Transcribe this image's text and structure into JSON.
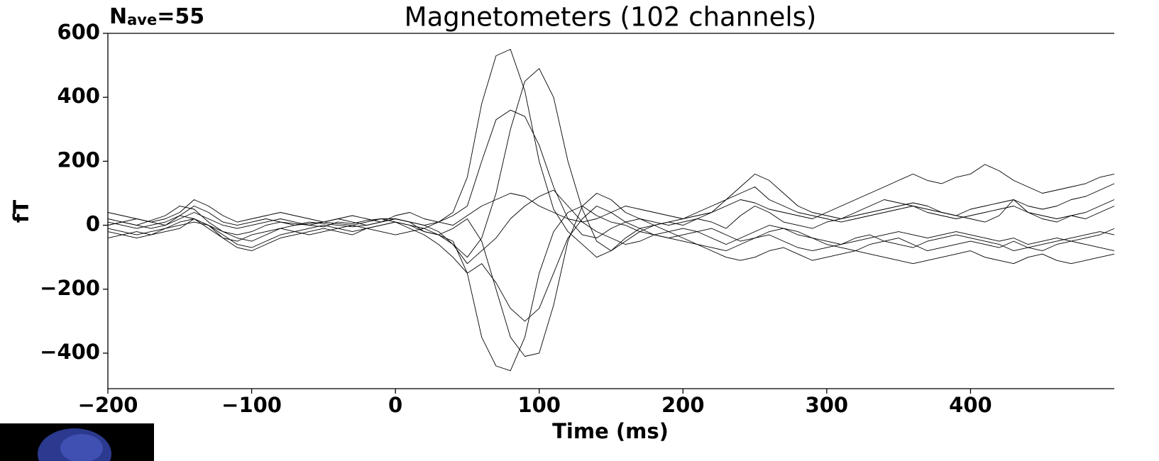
{
  "chart_data": {
    "type": "line",
    "title": "Magnetometers (102 channels)",
    "annotation": {
      "main": "N",
      "subscript": "ave",
      "rest": "=55"
    },
    "x_label": "Time (ms)",
    "y_label": "fT",
    "xlim": [
      -200,
      500
    ],
    "ylim": [
      -511,
      600
    ],
    "xticks": [
      {
        "value": -200,
        "label": "−200"
      },
      {
        "value": -100,
        "label": "−100"
      },
      0,
      100,
      200,
      300,
      400
    ],
    "yticks": [
      {
        "value": -400,
        "label": "−400"
      },
      {
        "value": -200,
        "label": "−200"
      },
      0,
      200,
      400,
      600
    ],
    "x": [
      -200,
      -190,
      -180,
      -170,
      -160,
      -150,
      -140,
      -130,
      -120,
      -110,
      -100,
      -90,
      -80,
      -70,
      -60,
      -50,
      -40,
      -30,
      -20,
      -10,
      0,
      10,
      20,
      30,
      40,
      50,
      60,
      70,
      80,
      90,
      100,
      110,
      120,
      130,
      140,
      150,
      160,
      170,
      180,
      190,
      200,
      210,
      220,
      230,
      240,
      250,
      260,
      270,
      280,
      290,
      300,
      310,
      320,
      330,
      340,
      350,
      360,
      370,
      380,
      390,
      400,
      410,
      420,
      430,
      440,
      450,
      460,
      470,
      480,
      490,
      500
    ],
    "series": [
      {
        "color": "#000000",
        "values": [
          20,
          10,
          0,
          15,
          30,
          60,
          50,
          10,
          -20,
          -30,
          -20,
          0,
          10,
          5,
          0,
          -5,
          10,
          5,
          15,
          20,
          10,
          0,
          -10,
          10,
          40,
          150,
          380,
          530,
          550,
          420,
          200,
          50,
          -20,
          -60,
          -100,
          -80,
          -40,
          -10,
          0,
          10,
          0,
          20,
          10,
          -10,
          30,
          60,
          40,
          10,
          0,
          -10,
          10,
          20,
          30,
          40,
          50,
          60,
          70,
          60,
          40,
          30,
          20,
          10,
          30,
          80,
          40,
          20,
          10,
          30,
          20,
          40,
          60
        ]
      },
      {
        "color": "#000000",
        "values": [
          10,
          0,
          -10,
          0,
          10,
          30,
          20,
          0,
          -20,
          -40,
          -50,
          -30,
          -10,
          0,
          10,
          5,
          0,
          -5,
          0,
          10,
          20,
          10,
          -20,
          -30,
          -50,
          -150,
          -350,
          -440,
          -455,
          -350,
          -150,
          -20,
          40,
          60,
          30,
          10,
          0,
          -20,
          -30,
          -40,
          -30,
          -20,
          -10,
          -30,
          -50,
          -40,
          -20,
          -10,
          -30,
          -40,
          -50,
          -60,
          -40,
          -30,
          -50,
          -60,
          -70,
          -50,
          -40,
          -30,
          -40,
          -50,
          -60,
          -80,
          -70,
          -60,
          -50,
          -40,
          -30,
          -20,
          -30
        ]
      },
      {
        "color": "#000000",
        "values": [
          0,
          10,
          20,
          10,
          0,
          20,
          40,
          20,
          0,
          -10,
          0,
          10,
          20,
          10,
          0,
          10,
          20,
          10,
          0,
          10,
          20,
          10,
          0,
          -20,
          -60,
          -100,
          -40,
          100,
          300,
          450,
          490,
          400,
          200,
          50,
          -50,
          -80,
          -50,
          -20,
          0,
          10,
          20,
          30,
          40,
          60,
          80,
          70,
          50,
          40,
          30,
          20,
          40,
          60,
          80,
          100,
          120,
          140,
          160,
          140,
          130,
          150,
          160,
          190,
          170,
          140,
          120,
          100,
          110,
          120,
          130,
          150,
          160
        ]
      },
      {
        "color": "#000000",
        "values": [
          -10,
          -20,
          -30,
          -20,
          -10,
          0,
          10,
          0,
          -30,
          -60,
          -70,
          -50,
          -30,
          -20,
          -10,
          0,
          -10,
          -20,
          -10,
          0,
          10,
          0,
          -20,
          -30,
          -10,
          20,
          -50,
          -200,
          -350,
          -410,
          -400,
          -250,
          -50,
          60,
          100,
          80,
          40,
          20,
          0,
          -20,
          -40,
          -60,
          -80,
          -100,
          -110,
          -100,
          -80,
          -70,
          -90,
          -110,
          -100,
          -90,
          -80,
          -90,
          -100,
          -110,
          -120,
          -110,
          -100,
          -90,
          -80,
          -100,
          -110,
          -120,
          -100,
          -90,
          -110,
          -120,
          -110,
          -100,
          -90
        ]
      },
      {
        "color": "#000000",
        "values": [
          0,
          10,
          0,
          -10,
          0,
          30,
          60,
          40,
          10,
          0,
          10,
          20,
          10,
          0,
          5,
          10,
          5,
          0,
          10,
          20,
          20,
          10,
          0,
          10,
          30,
          60,
          200,
          330,
          360,
          340,
          250,
          120,
          20,
          -30,
          -40,
          -10,
          10,
          20,
          10,
          0,
          10,
          20,
          40,
          80,
          120,
          160,
          140,
          100,
          60,
          40,
          30,
          20,
          40,
          60,
          80,
          70,
          60,
          50,
          40,
          30,
          50,
          60,
          70,
          80,
          60,
          50,
          60,
          80,
          90,
          110,
          130
        ]
      },
      {
        "color": "#000000",
        "values": [
          -20,
          -30,
          -40,
          -30,
          -10,
          10,
          20,
          0,
          -40,
          -70,
          -80,
          -60,
          -40,
          -30,
          -20,
          -10,
          -20,
          -30,
          -10,
          0,
          10,
          -10,
          -30,
          -60,
          -100,
          -150,
          -120,
          -180,
          -260,
          -300,
          -260,
          -150,
          -40,
          20,
          60,
          40,
          10,
          -10,
          -30,
          -40,
          -50,
          -60,
          -70,
          -80,
          -60,
          -40,
          -30,
          -50,
          -70,
          -80,
          -70,
          -60,
          -50,
          -40,
          -30,
          -20,
          -30,
          -40,
          -30,
          -20,
          -30,
          -40,
          -50,
          -40,
          -60,
          -50,
          -40,
          -50,
          -60,
          -70,
          -80
        ]
      },
      {
        "color": "#000000",
        "values": [
          40,
          30,
          20,
          10,
          20,
          40,
          80,
          60,
          30,
          10,
          20,
          30,
          40,
          30,
          20,
          10,
          20,
          30,
          20,
          10,
          30,
          40,
          20,
          10,
          0,
          30,
          60,
          80,
          100,
          90,
          60,
          40,
          20,
          10,
          20,
          40,
          60,
          50,
          40,
          30,
          20,
          40,
          60,
          80,
          100,
          120,
          80,
          60,
          40,
          30,
          20,
          10,
          20,
          30,
          40,
          50,
          60,
          40,
          30,
          20,
          30,
          40,
          50,
          60,
          40,
          30,
          20,
          30,
          40,
          60,
          80
        ]
      },
      {
        "color": "#000000",
        "values": [
          -40,
          -30,
          -20,
          -30,
          -20,
          -10,
          20,
          -10,
          -40,
          -50,
          -30,
          -20,
          -10,
          -20,
          -30,
          -20,
          -10,
          0,
          -10,
          -20,
          -30,
          -20,
          -10,
          -30,
          -60,
          -120,
          -80,
          -40,
          20,
          60,
          90,
          110,
          60,
          10,
          -20,
          -40,
          -60,
          -50,
          -30,
          -20,
          -10,
          -20,
          -40,
          -60,
          -40,
          -20,
          0,
          -10,
          -20,
          -40,
          -60,
          -70,
          -80,
          -60,
          -50,
          -40,
          -60,
          -80,
          -70,
          -60,
          -50,
          -60,
          -70,
          -50,
          -70,
          -80,
          -60,
          -50,
          -40,
          -30,
          -10
        ]
      }
    ]
  }
}
